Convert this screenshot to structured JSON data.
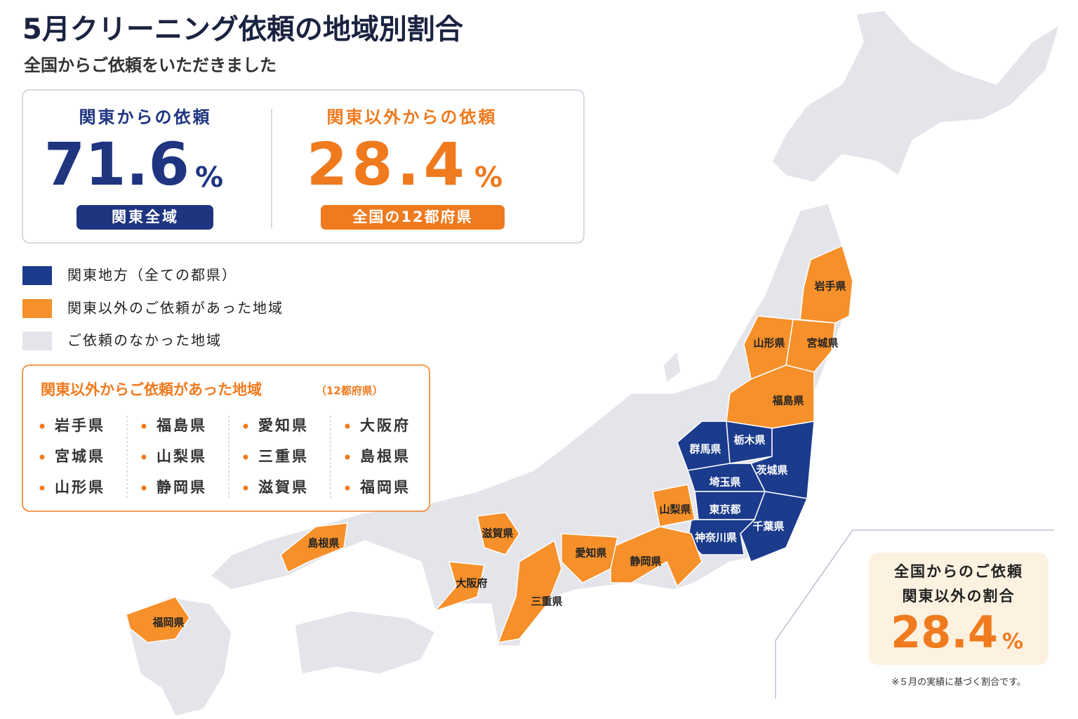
{
  "header": {
    "title": "5月クリーニング依頼の地域別割合",
    "subtitle": "全国からご依頼をいただきました"
  },
  "summary": [
    {
      "label": "関東からの依頼",
      "value": 71.6,
      "unit": "%",
      "badge": "関東全域",
      "color": "#1f3580"
    },
    {
      "label": "関東以外からの依頼",
      "value": 28.4,
      "unit": "%",
      "badge": "全国の12都府県",
      "color": "#f07a1e"
    }
  ],
  "legend": [
    {
      "label": "関東地方（全ての都県）",
      "color": "#1b3b8c"
    },
    {
      "label": "関東以外のご依頼があった地域",
      "color": "#f5902a"
    },
    {
      "label": "ご依頼のなかった地域",
      "color": "#e4e5ea"
    }
  ],
  "list": {
    "title": "関東以外からご依頼があった地域",
    "note": "（12都府県）",
    "columns": [
      [
        "岩手県",
        "宮城県",
        "山形県"
      ],
      [
        "福島県",
        "山梨県",
        "静岡県"
      ],
      [
        "愛知県",
        "三重県",
        "滋賀県"
      ],
      [
        "大阪府",
        "島根県",
        "福岡県"
      ]
    ]
  },
  "map": {
    "regions": [
      {
        "label": "岩手県",
        "color": "#f5902a"
      },
      {
        "label": "宮城県",
        "color": "#f5902a"
      },
      {
        "label": "山形県",
        "color": "#f5902a"
      },
      {
        "label": "福島県",
        "color": "#f5902a"
      },
      {
        "label": "群馬県",
        "color": "#1b3b8c"
      },
      {
        "label": "栃木県",
        "color": "#1b3b8c"
      },
      {
        "label": "茨城県",
        "color": "#1b3b8c"
      },
      {
        "label": "埼玉県",
        "color": "#1b3b8c"
      },
      {
        "label": "東京都",
        "color": "#1b3b8c"
      },
      {
        "label": "千葉県",
        "color": "#1b3b8c"
      },
      {
        "label": "神奈川県",
        "color": "#1b3b8c"
      },
      {
        "label": "山梨県",
        "color": "#f5902a"
      },
      {
        "label": "静岡県",
        "color": "#f5902a"
      },
      {
        "label": "愛知県",
        "color": "#f5902a"
      },
      {
        "label": "三重県",
        "color": "#f5902a"
      },
      {
        "label": "滋賀県",
        "color": "#f5902a"
      },
      {
        "label": "大阪府",
        "color": "#f5902a"
      },
      {
        "label": "島根県",
        "color": "#f5902a"
      },
      {
        "label": "福岡県",
        "color": "#f5902a"
      }
    ]
  },
  "callout": {
    "lines": [
      "全国からのご依頼",
      "関東以外の割合"
    ],
    "value": 28.4,
    "unit": "%",
    "footnote": "※５月の実績に基づく割合です。"
  }
}
